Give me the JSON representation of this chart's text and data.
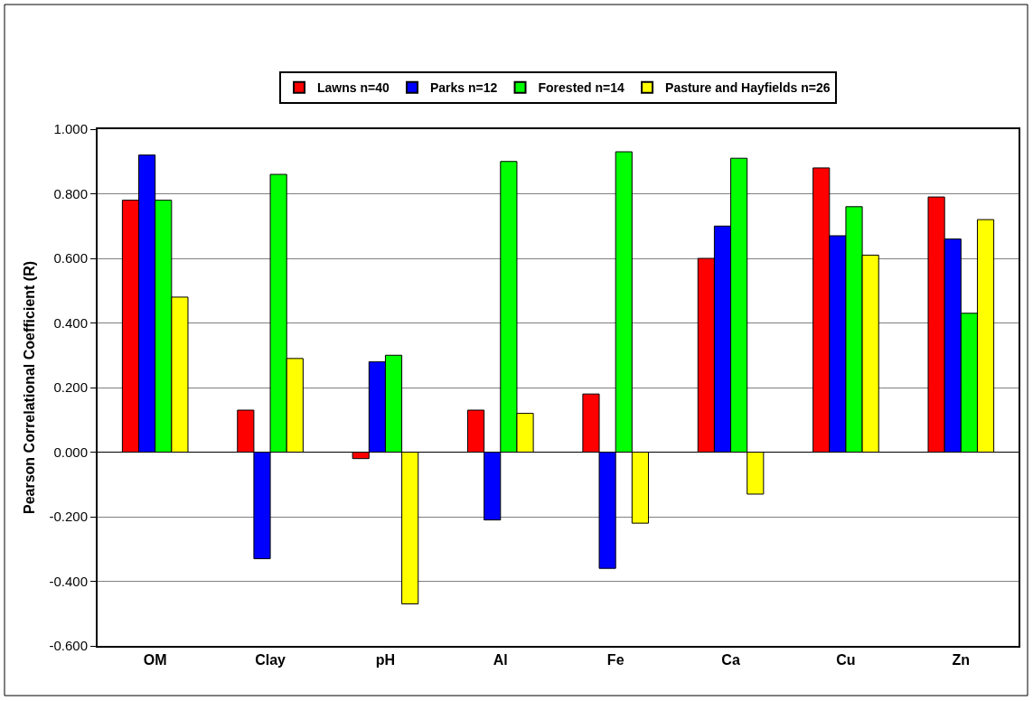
{
  "chart_data": {
    "type": "bar",
    "ylabel": "Pearson Correlational Coefficient (R)",
    "categories": [
      "OM",
      "Clay",
      "pH",
      "Al",
      "Fe",
      "Ca",
      "Cu",
      "Zn"
    ],
    "series": [
      {
        "name": "Lawns n=40",
        "color": "#ff0000",
        "values": [
          0.78,
          0.13,
          -0.02,
          0.13,
          0.18,
          0.6,
          0.88,
          0.79
        ]
      },
      {
        "name": "Parks n=12",
        "color": "#0000ff",
        "values": [
          0.92,
          -0.33,
          0.28,
          -0.21,
          -0.36,
          0.7,
          0.67,
          0.66
        ]
      },
      {
        "name": "Forested n=14",
        "color": "#00ff00",
        "values": [
          0.78,
          0.86,
          0.3,
          0.9,
          0.93,
          0.91,
          0.76,
          0.43
        ]
      },
      {
        "name": "Pasture and Hayfields n=26",
        "color": "#ffff00",
        "values": [
          0.48,
          0.29,
          -0.47,
          0.12,
          -0.22,
          -0.13,
          0.61,
          0.72
        ]
      }
    ],
    "ylim": [
      -0.6,
      1.0
    ],
    "yticks": [
      {
        "value": -0.6,
        "label": "-0.600"
      },
      {
        "value": -0.4,
        "label": "-0.400"
      },
      {
        "value": -0.2,
        "label": "-0.200"
      },
      {
        "value": 0,
        "label": "0.000"
      },
      {
        "value": 0.2,
        "label": "0.200"
      },
      {
        "value": 0.4,
        "label": "0.400"
      },
      {
        "value": 0.6,
        "label": "0.600"
      },
      {
        "value": 0.8,
        "label": "0.800"
      },
      {
        "value": 1.0,
        "label": "1.000"
      }
    ],
    "grid": "y",
    "legend": "top"
  }
}
